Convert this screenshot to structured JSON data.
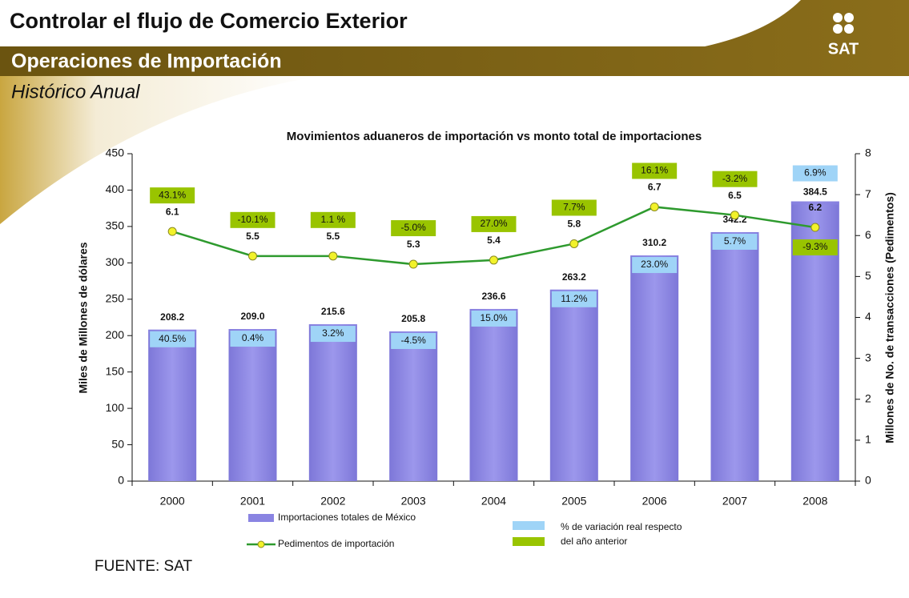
{
  "header": {
    "title": "Controlar el flujo de Comercio Exterior",
    "section": "Operaciones de Importación",
    "subtitle": "Histórico Anual",
    "logo": "SAT"
  },
  "chart_data": {
    "type": "bar_line",
    "title": "Movimientos aduaneros de importación vs monto total de importaciones",
    "y_label": "Miles de Millones de dólares",
    "y2_label": "Millones de No. de transacciones (Pedimentos)",
    "categories": [
      "2000",
      "2001",
      "2002",
      "2003",
      "2004",
      "2005",
      "2006",
      "2007",
      "2008"
    ],
    "ylim": [
      0,
      450
    ],
    "yticks": [
      0,
      50,
      100,
      150,
      200,
      250,
      300,
      350,
      400,
      450
    ],
    "y2lim": [
      0,
      8
    ],
    "y2ticks": [
      0,
      1,
      2,
      3,
      4,
      5,
      6,
      7,
      8
    ],
    "series": [
      {
        "name": "Importaciones totales de México",
        "type": "bar",
        "color": "#8a84e2",
        "values": [
          208.2,
          209.0,
          215.6,
          205.8,
          236.6,
          263.2,
          310.2,
          342.2,
          384.5
        ],
        "value_labels": [
          "208.2",
          "209.0",
          "215.6",
          "205.8",
          "236.6",
          "263.2",
          "310.2",
          "342.2",
          "384.5"
        ]
      },
      {
        "name": "Pedimentos de importación",
        "type": "line",
        "axis": "y2",
        "color": "#2e9a2e",
        "values": [
          6.1,
          5.5,
          5.5,
          5.3,
          5.4,
          5.8,
          6.7,
          6.5,
          6.2
        ]
      }
    ],
    "variation_legend": [
      "% de variación real respecto",
      "del año anterior"
    ],
    "bar_variation": {
      "color": "#9fd4f7",
      "values": [
        40.5,
        0.4,
        3.2,
        -4.5,
        15.0,
        11.2,
        23.0,
        5.7,
        6.9
      ],
      "value_labels": [
        "40.5%",
        "0.4%",
        "3.2%",
        "-4.5%",
        "15.0%",
        "11.2%",
        "23.0%",
        "5.7%",
        "6.9%"
      ]
    },
    "line_variation": {
      "color": "#99c400",
      "values": [
        43.1,
        -10.1,
        1.1,
        -5.0,
        27.0,
        7.7,
        16.1,
        -3.2,
        -9.3
      ],
      "value_labels": [
        "43.1%",
        "-10.1%",
        "1.1 %",
        "-5.0%",
        "27.0%",
        "7.7%",
        "16.1%",
        "-3.2%",
        "-9.3%"
      ]
    },
    "source": "FUENTE:  SAT"
  }
}
